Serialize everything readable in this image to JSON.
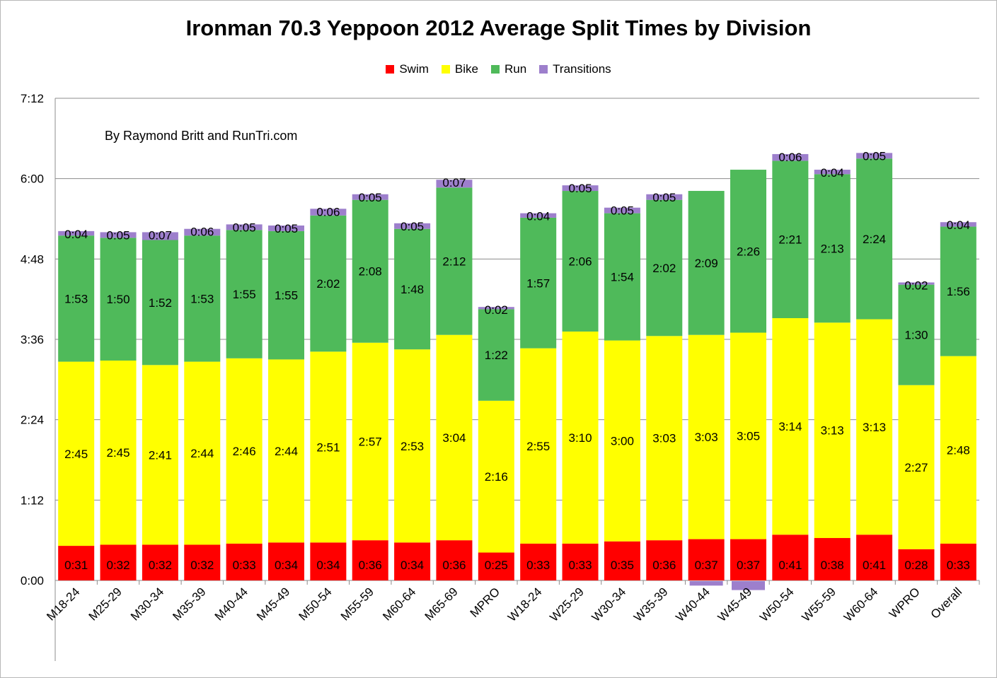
{
  "chart_data": {
    "type": "bar",
    "stacked": true,
    "title": "Ironman 70.3 Yeppoon 2012 Average Split Times by Division",
    "annotation": "By Raymond Britt and RunTri.com",
    "xlabel": "",
    "ylabel": "",
    "y_unit": "minutes",
    "ylim": [
      0,
      432
    ],
    "y_ticks": [
      "0:00",
      "1:12",
      "2:24",
      "3:36",
      "4:48",
      "6:00",
      "7:12"
    ],
    "grid": "horizontal",
    "legend_position": "top",
    "categories": [
      "M18-24",
      "M25-29",
      "M30-34",
      "M35-39",
      "M40-44",
      "M45-49",
      "M50-54",
      "M55-59",
      "M60-64",
      "M65-69",
      "MPRO",
      "W18-24",
      "W25-29",
      "W30-34",
      "W35-39",
      "W40-44",
      "W45-49",
      "W50-54",
      "W55-59",
      "W60-64",
      "WPRO",
      "Overall"
    ],
    "series": [
      {
        "name": "Swim",
        "color": "#ff0000",
        "values": [
          31,
          32,
          32,
          32,
          33,
          34,
          34,
          36,
          34,
          36,
          25,
          33,
          33,
          35,
          36,
          37,
          37,
          41,
          38,
          41,
          28,
          33
        ],
        "labels": [
          "0:31",
          "0:32",
          "0:32",
          "0:32",
          "0:33",
          "0:34",
          "0:34",
          "0:36",
          "0:34",
          "0:36",
          "0:25",
          "0:33",
          "0:33",
          "0:35",
          "0:36",
          "0:37",
          "0:37",
          "0:41",
          "0:38",
          "0:41",
          "0:28",
          "0:33"
        ]
      },
      {
        "name": "Bike",
        "color": "#ffff00",
        "values": [
          165,
          165,
          161,
          164,
          166,
          164,
          171,
          177,
          173,
          184,
          136,
          175,
          190,
          180,
          183,
          183,
          185,
          194,
          193,
          193,
          147,
          168
        ],
        "labels": [
          "2:45",
          "2:45",
          "2:41",
          "2:44",
          "2:46",
          "2:44",
          "2:51",
          "2:57",
          "2:53",
          "3:04",
          "2:16",
          "2:55",
          "3:10",
          "3:00",
          "3:03",
          "3:03",
          "3:05",
          "3:14",
          "3:13",
          "3:13",
          "2:27",
          "2:48"
        ]
      },
      {
        "name": "Run",
        "color": "#4fba5a",
        "values": [
          113,
          110,
          112,
          113,
          115,
          115,
          122,
          128,
          108,
          132,
          82,
          117,
          126,
          114,
          122,
          129,
          146,
          141,
          133,
          144,
          90,
          116
        ],
        "labels": [
          "1:53",
          "1:50",
          "1:52",
          "1:53",
          "1:55",
          "1:55",
          "2:02",
          "2:08",
          "1:48",
          "2:12",
          "1:22",
          "1:57",
          "2:06",
          "1:54",
          "2:02",
          "2:09",
          "2:26",
          "2:21",
          "2:13",
          "2:24",
          "1:30",
          "1:56"
        ]
      },
      {
        "name": "Transitions",
        "color": "#9d7fcc",
        "values": [
          4,
          5,
          7,
          6,
          5,
          5,
          6,
          5,
          5,
          7,
          2,
          4,
          5,
          5,
          5,
          -4,
          -8,
          6,
          4,
          5,
          2,
          4
        ],
        "labels": [
          "0:04",
          "0:05",
          "0:07",
          "0:06",
          "0:05",
          "0:05",
          "0:06",
          "0:05",
          "0:05",
          "0:07",
          "0:02",
          "0:04",
          "0:05",
          "0:05",
          "0:05",
          "",
          "",
          "0:06",
          "0:04",
          "0:05",
          "0:02",
          "0:04"
        ]
      }
    ]
  }
}
